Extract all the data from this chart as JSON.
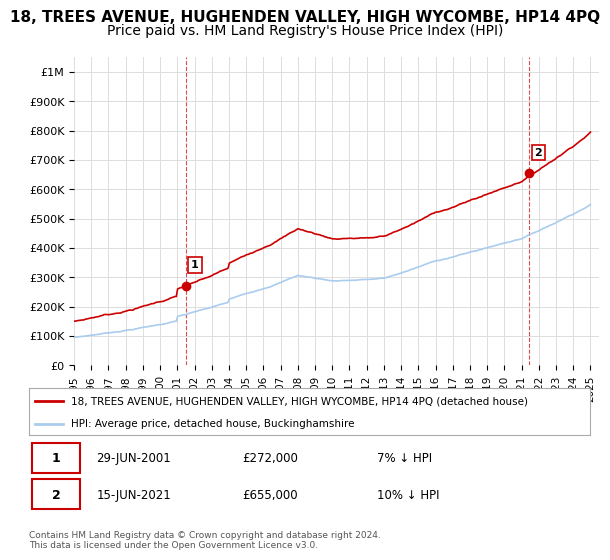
{
  "title": "18, TREES AVENUE, HUGHENDEN VALLEY, HIGH WYCOMBE, HP14 4PQ",
  "subtitle": "Price paid vs. HM Land Registry's House Price Index (HPI)",
  "ylabel_ticks": [
    "£0",
    "£100K",
    "£200K",
    "£300K",
    "£400K",
    "£500K",
    "£600K",
    "£700K",
    "£800K",
    "£900K",
    "£1M"
  ],
  "ytick_values": [
    0,
    100000,
    200000,
    300000,
    400000,
    500000,
    600000,
    700000,
    800000,
    900000,
    1000000
  ],
  "ylim": [
    0,
    1050000
  ],
  "xlim_start": 1995.0,
  "xlim_end": 2025.5,
  "sale1_x": 2001.5,
  "sale1_y": 272000,
  "sale2_x": 2021.45,
  "sale2_y": 655000,
  "sale1_label": "1",
  "sale2_label": "2",
  "marker_color": "#cc0000",
  "dashed_line_color": "#cc0000",
  "hpi_color": "#aaccee",
  "price_line_color": "#cc0000",
  "legend_property": "18, TREES AVENUE, HUGHENDEN VALLEY, HIGH WYCOMBE, HP14 4PQ (detached house)",
  "legend_hpi": "HPI: Average price, detached house, Buckinghamshire",
  "table_row1": [
    "1",
    "29-JUN-2001",
    "£272,000",
    "7% ↓ HPI"
  ],
  "table_row2": [
    "2",
    "15-JUN-2021",
    "£655,000",
    "10% ↓ HPI"
  ],
  "footnote": "Contains HM Land Registry data © Crown copyright and database right 2024.\nThis data is licensed under the Open Government Licence v3.0.",
  "background_color": "#ffffff",
  "grid_color": "#dddddd",
  "title_fontsize": 11,
  "subtitle_fontsize": 10
}
